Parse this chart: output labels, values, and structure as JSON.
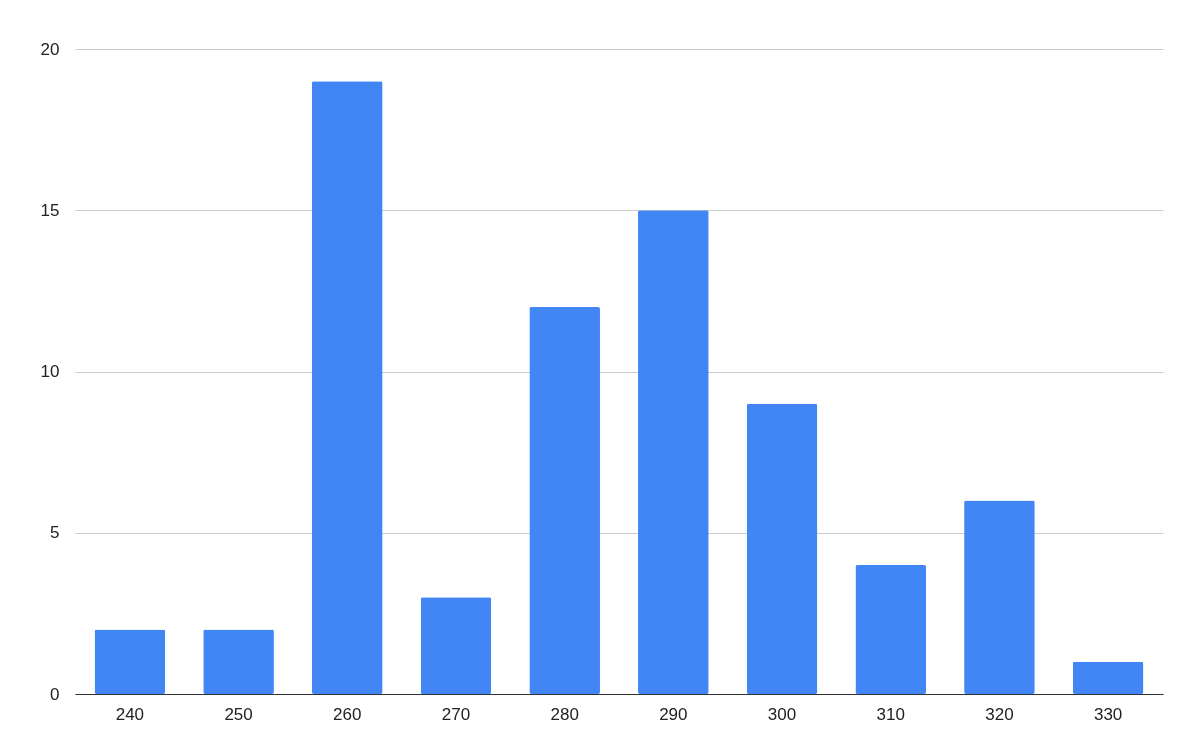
{
  "chart_data": {
    "type": "bar",
    "categories": [
      "240",
      "250",
      "260",
      "270",
      "280",
      "290",
      "300",
      "310",
      "320",
      "330"
    ],
    "values": [
      2,
      2,
      19,
      3,
      12,
      15,
      9,
      4,
      6,
      1
    ],
    "color": "#4285f4",
    "ylim": [
      0,
      20
    ],
    "yticks": [
      0,
      5,
      10,
      15,
      20
    ],
    "grid": "y"
  }
}
